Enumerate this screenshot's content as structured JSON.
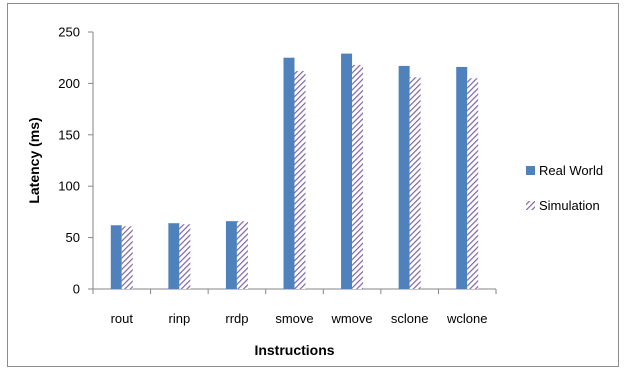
{
  "chart_data": {
    "type": "bar",
    "categories": [
      "rout",
      "rinp",
      "rrdp",
      "smove",
      "wmove",
      "sclone",
      "wclone"
    ],
    "series": [
      {
        "name": "Real World",
        "values": [
          62,
          64,
          66,
          225,
          229,
          217,
          216
        ],
        "color": "#4f81bd",
        "pattern": "solid"
      },
      {
        "name": "Simulation",
        "values": [
          61,
          63,
          66,
          212,
          218,
          206,
          205
        ],
        "color": "#8064a2",
        "pattern": "diagonal-hatch"
      }
    ],
    "title": "",
    "xlabel": "Instructions",
    "ylabel": "Latency (ms)",
    "ylim": [
      0,
      250
    ],
    "yticks": [
      0,
      50,
      100,
      150,
      200,
      250
    ],
    "grid": false,
    "legend_position": "right"
  }
}
